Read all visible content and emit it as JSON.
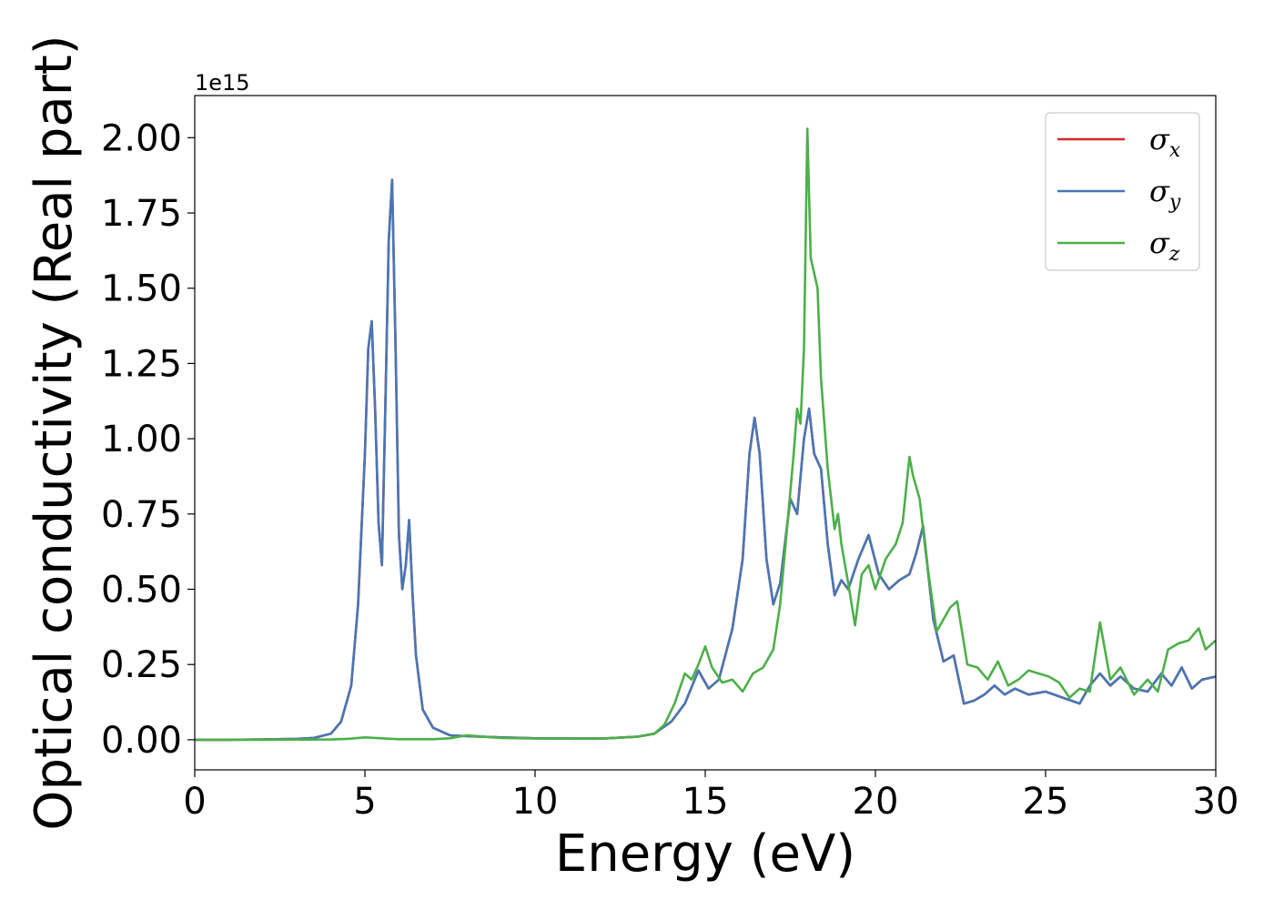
{
  "chart_data": {
    "type": "line",
    "xlabel": "Energy (eV)",
    "ylabel": "Optical conductivity (Real part)",
    "y_offset_text": "1e15",
    "xlim": [
      0,
      30
    ],
    "ylim": [
      -0.1,
      2.14
    ],
    "x_ticks": [
      0,
      5,
      10,
      15,
      20,
      25,
      30
    ],
    "x_tick_labels": [
      "0",
      "5",
      "10",
      "15",
      "20",
      "25",
      "30"
    ],
    "y_ticks": [
      0,
      0.25,
      0.5,
      0.75,
      1.0,
      1.25,
      1.5,
      1.75,
      2.0
    ],
    "y_tick_labels": [
      "0.00",
      "0.25",
      "0.50",
      "0.75",
      "1.00",
      "1.25",
      "1.50",
      "1.75",
      "2.00"
    ],
    "grid": false,
    "legend_position": "top-right",
    "series": [
      {
        "name": "σx",
        "symbol": "σ",
        "subscript": "x",
        "color": "#d62728",
        "x": [
          0,
          1,
          2,
          3,
          3.5,
          4,
          4.3,
          4.6,
          4.8,
          5.0,
          5.1,
          5.2,
          5.3,
          5.4,
          5.5,
          5.6,
          5.7,
          5.8,
          5.9,
          6.0,
          6.1,
          6.2,
          6.3,
          6.4,
          6.5,
          6.7,
          7,
          7.5,
          8,
          9,
          10,
          11,
          12,
          13,
          13.5,
          14,
          14.4,
          14.8,
          15.1,
          15.4,
          15.8,
          16.1,
          16.3,
          16.45,
          16.6,
          16.8,
          17.0,
          17.2,
          17.5,
          17.7,
          17.9,
          18.05,
          18.2,
          18.4,
          18.6,
          18.8,
          19.0,
          19.2,
          19.5,
          19.8,
          20.1,
          20.4,
          20.7,
          21.0,
          21.2,
          21.4,
          21.7,
          22.0,
          22.3,
          22.6,
          22.9,
          23.2,
          23.5,
          23.8,
          24.1,
          24.5,
          25.0,
          25.5,
          26.0,
          26.3,
          26.6,
          26.9,
          27.2,
          27.6,
          28.0,
          28.4,
          28.7,
          29.0,
          29.3,
          29.6,
          30.0
        ],
        "values": [
          0,
          0,
          0.001,
          0.003,
          0.006,
          0.02,
          0.06,
          0.18,
          0.45,
          0.95,
          1.3,
          1.39,
          1.1,
          0.72,
          0.58,
          1.1,
          1.66,
          1.86,
          1.3,
          0.68,
          0.5,
          0.58,
          0.73,
          0.48,
          0.28,
          0.1,
          0.04,
          0.015,
          0.012,
          0.008,
          0.005,
          0.004,
          0.004,
          0.01,
          0.02,
          0.06,
          0.12,
          0.23,
          0.17,
          0.2,
          0.37,
          0.6,
          0.95,
          1.07,
          0.95,
          0.6,
          0.45,
          0.52,
          0.8,
          0.75,
          1.0,
          1.1,
          0.95,
          0.9,
          0.65,
          0.48,
          0.53,
          0.5,
          0.6,
          0.68,
          0.55,
          0.5,
          0.53,
          0.55,
          0.62,
          0.71,
          0.4,
          0.26,
          0.28,
          0.12,
          0.13,
          0.15,
          0.18,
          0.15,
          0.17,
          0.15,
          0.16,
          0.14,
          0.12,
          0.18,
          0.22,
          0.18,
          0.21,
          0.17,
          0.16,
          0.22,
          0.18,
          0.24,
          0.17,
          0.2,
          0.21
        ]
      },
      {
        "name": "σy",
        "symbol": "σ",
        "subscript": "y",
        "color": "#4877b4",
        "x": [
          0,
          1,
          2,
          3,
          3.5,
          4,
          4.3,
          4.6,
          4.8,
          5.0,
          5.1,
          5.2,
          5.3,
          5.4,
          5.5,
          5.6,
          5.7,
          5.8,
          5.9,
          6.0,
          6.1,
          6.2,
          6.3,
          6.4,
          6.5,
          6.7,
          7,
          7.5,
          8,
          9,
          10,
          11,
          12,
          13,
          13.5,
          14,
          14.4,
          14.8,
          15.1,
          15.4,
          15.8,
          16.1,
          16.3,
          16.45,
          16.6,
          16.8,
          17.0,
          17.2,
          17.5,
          17.7,
          17.9,
          18.05,
          18.2,
          18.4,
          18.6,
          18.8,
          19.0,
          19.2,
          19.5,
          19.8,
          20.1,
          20.4,
          20.7,
          21.0,
          21.2,
          21.4,
          21.7,
          22.0,
          22.3,
          22.6,
          22.9,
          23.2,
          23.5,
          23.8,
          24.1,
          24.5,
          25.0,
          25.5,
          26.0,
          26.3,
          26.6,
          26.9,
          27.2,
          27.6,
          28.0,
          28.4,
          28.7,
          29.0,
          29.3,
          29.6,
          30.0
        ],
        "values": [
          0,
          0,
          0.001,
          0.003,
          0.006,
          0.02,
          0.06,
          0.18,
          0.45,
          0.95,
          1.3,
          1.39,
          1.1,
          0.72,
          0.58,
          1.1,
          1.66,
          1.86,
          1.3,
          0.68,
          0.5,
          0.58,
          0.73,
          0.48,
          0.28,
          0.1,
          0.04,
          0.015,
          0.012,
          0.008,
          0.005,
          0.004,
          0.004,
          0.01,
          0.02,
          0.06,
          0.12,
          0.23,
          0.17,
          0.2,
          0.37,
          0.6,
          0.95,
          1.07,
          0.95,
          0.6,
          0.45,
          0.52,
          0.8,
          0.75,
          1.0,
          1.1,
          0.95,
          0.9,
          0.65,
          0.48,
          0.53,
          0.5,
          0.6,
          0.68,
          0.55,
          0.5,
          0.53,
          0.55,
          0.62,
          0.71,
          0.4,
          0.26,
          0.28,
          0.12,
          0.13,
          0.15,
          0.18,
          0.15,
          0.17,
          0.15,
          0.16,
          0.14,
          0.12,
          0.18,
          0.22,
          0.18,
          0.21,
          0.17,
          0.16,
          0.22,
          0.18,
          0.24,
          0.17,
          0.2,
          0.21
        ]
      },
      {
        "name": "σz",
        "symbol": "σ",
        "subscript": "z",
        "color": "#4daf4a",
        "x": [
          0,
          2,
          4,
          4.5,
          5,
          5.3,
          5.6,
          6,
          7,
          7.5,
          8,
          8.5,
          9,
          10,
          11,
          12,
          13,
          13.5,
          13.8,
          14.1,
          14.4,
          14.6,
          14.8,
          15.0,
          15.2,
          15.5,
          15.8,
          16.1,
          16.4,
          16.7,
          17.0,
          17.2,
          17.4,
          17.6,
          17.7,
          17.8,
          17.9,
          18.0,
          18.1,
          18.2,
          18.3,
          18.4,
          18.6,
          18.8,
          18.9,
          19.0,
          19.2,
          19.4,
          19.6,
          19.8,
          20.0,
          20.3,
          20.6,
          20.8,
          21.0,
          21.1,
          21.3,
          21.5,
          21.8,
          22.0,
          22.2,
          22.4,
          22.7,
          23.0,
          23.3,
          23.6,
          23.9,
          24.2,
          24.5,
          24.8,
          25.1,
          25.4,
          25.7,
          26.0,
          26.3,
          26.6,
          26.9,
          27.2,
          27.6,
          28.0,
          28.3,
          28.6,
          28.9,
          29.2,
          29.5,
          29.7,
          30.0
        ],
        "values": [
          0,
          0,
          0.001,
          0.003,
          0.008,
          0.006,
          0.004,
          0.002,
          0.002,
          0.005,
          0.015,
          0.01,
          0.006,
          0.004,
          0.004,
          0.004,
          0.01,
          0.02,
          0.05,
          0.12,
          0.22,
          0.2,
          0.25,
          0.31,
          0.24,
          0.19,
          0.2,
          0.16,
          0.22,
          0.24,
          0.3,
          0.45,
          0.7,
          0.95,
          1.1,
          1.05,
          1.3,
          2.03,
          1.6,
          1.55,
          1.5,
          1.2,
          0.9,
          0.7,
          0.75,
          0.65,
          0.52,
          0.38,
          0.55,
          0.58,
          0.5,
          0.6,
          0.65,
          0.72,
          0.94,
          0.88,
          0.8,
          0.6,
          0.36,
          0.4,
          0.44,
          0.46,
          0.25,
          0.24,
          0.2,
          0.26,
          0.18,
          0.2,
          0.23,
          0.22,
          0.21,
          0.19,
          0.14,
          0.17,
          0.16,
          0.39,
          0.2,
          0.24,
          0.15,
          0.2,
          0.16,
          0.3,
          0.32,
          0.33,
          0.37,
          0.3,
          0.33
        ]
      }
    ]
  }
}
